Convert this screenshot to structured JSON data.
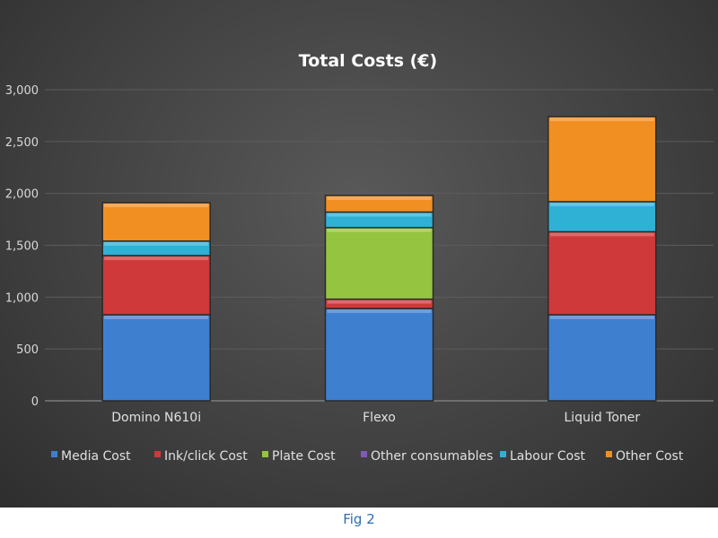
{
  "chart_data": {
    "type": "bar",
    "stacked": true,
    "title": "Total Costs (€)",
    "xlabel": "",
    "ylabel": "",
    "ylim": [
      0,
      3000
    ],
    "yticks": [
      "0",
      "500",
      "1,000",
      "1,500",
      "2,000",
      "2,500",
      "3,000"
    ],
    "ytick_values": [
      0,
      500,
      1000,
      1500,
      2000,
      2500,
      3000
    ],
    "grid": true,
    "legend_position": "bottom",
    "categories": [
      "Domino N610i",
      "Flexo",
      "Liquid Toner"
    ],
    "series": [
      {
        "name": "Media Cost",
        "color": "#3f7fcf",
        "values": [
          830,
          890,
          830
        ]
      },
      {
        "name": "Ink/click Cost",
        "color": "#d0393a",
        "values": [
          570,
          90,
          800
        ]
      },
      {
        "name": "Plate Cost",
        "color": "#95c440",
        "values": [
          0,
          690,
          0
        ]
      },
      {
        "name": "Other consumables",
        "color": "#7e5bb5",
        "values": [
          0,
          0,
          0
        ]
      },
      {
        "name": "Labour Cost",
        "color": "#2fb1d6",
        "values": [
          140,
          150,
          290
        ]
      },
      {
        "name": "Other Cost",
        "color": "#f28f22",
        "values": [
          370,
          160,
          820
        ]
      }
    ]
  },
  "caption": "Fig 2"
}
